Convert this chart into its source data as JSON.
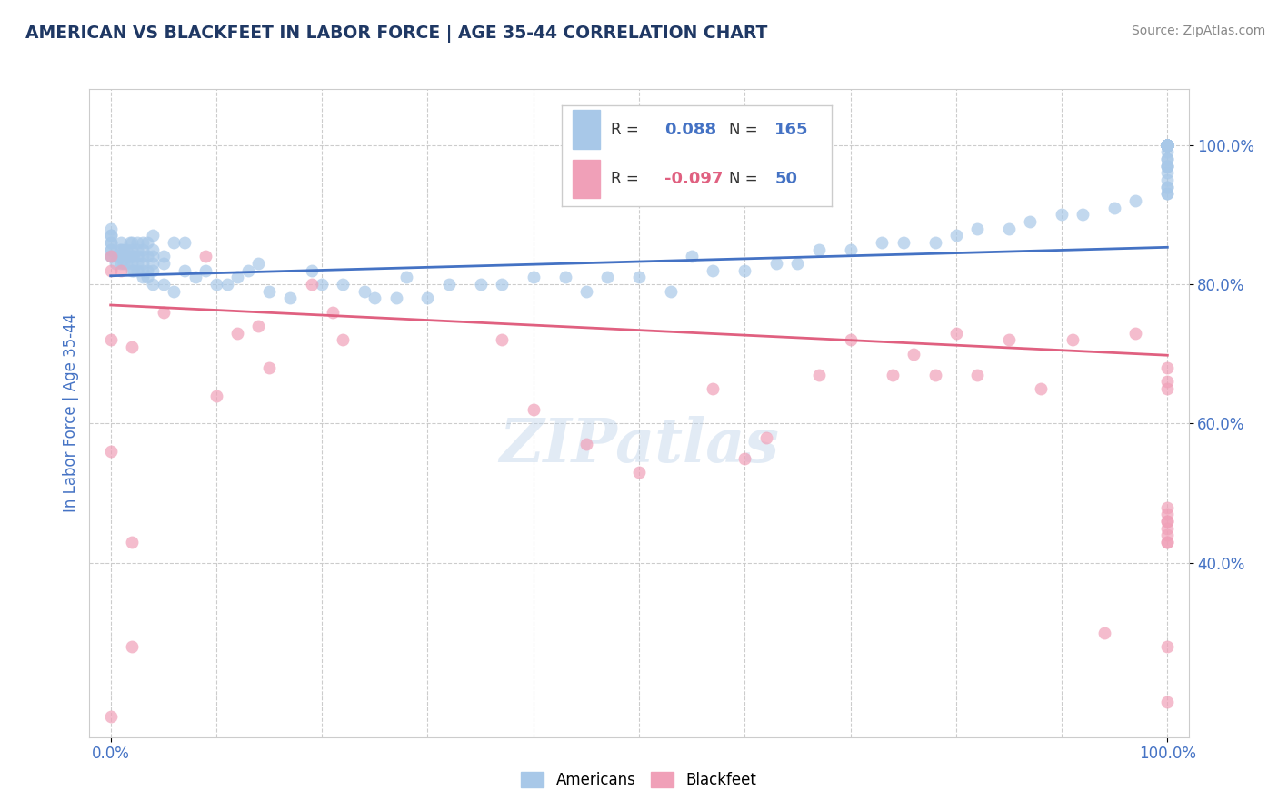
{
  "title": "AMERICAN VS BLACKFEET IN LABOR FORCE | AGE 35-44 CORRELATION CHART",
  "source": "Source: ZipAtlas.com",
  "ylabel": "In Labor Force | Age 35-44",
  "watermark": "ZIPatlas",
  "americans_R": 0.088,
  "americans_N": 165,
  "blackfeet_R": -0.097,
  "blackfeet_N": 50,
  "xlim": [
    -0.02,
    1.02
  ],
  "ylim": [
    0.15,
    1.08
  ],
  "y_ticks": [
    0.4,
    0.6,
    0.8,
    1.0
  ],
  "y_tick_labels": [
    "40.0%",
    "60.0%",
    "80.0%",
    "100.0%"
  ],
  "american_color": "#a8c8e8",
  "blackfeet_color": "#f0a0b8",
  "american_line_color": "#4472C4",
  "blackfeet_line_color": "#E06080",
  "title_color": "#1F3864",
  "tick_color": "#4472C4",
  "background_color": "#ffffff",
  "legend_box_color_american": "#a8c8e8",
  "legend_box_color_blackfeet": "#f0a0b8",
  "americans_x": [
    0.0,
    0.0,
    0.0,
    0.0,
    0.0,
    0.0,
    0.0,
    0.0,
    0.0,
    0.005,
    0.005,
    0.007,
    0.008,
    0.009,
    0.01,
    0.01,
    0.01,
    0.01,
    0.01,
    0.012,
    0.012,
    0.015,
    0.015,
    0.015,
    0.015,
    0.018,
    0.018,
    0.02,
    0.02,
    0.02,
    0.02,
    0.02,
    0.022,
    0.022,
    0.025,
    0.025,
    0.025,
    0.025,
    0.025,
    0.03,
    0.03,
    0.03,
    0.03,
    0.03,
    0.03,
    0.035,
    0.035,
    0.035,
    0.035,
    0.04,
    0.04,
    0.04,
    0.04,
    0.04,
    0.04,
    0.05,
    0.05,
    0.05,
    0.06,
    0.06,
    0.07,
    0.07,
    0.08,
    0.09,
    0.1,
    0.11,
    0.12,
    0.13,
    0.14,
    0.15,
    0.17,
    0.19,
    0.2,
    0.22,
    0.24,
    0.25,
    0.27,
    0.28,
    0.3,
    0.32,
    0.35,
    0.37,
    0.4,
    0.43,
    0.45,
    0.47,
    0.5,
    0.53,
    0.55,
    0.57,
    0.6,
    0.63,
    0.65,
    0.67,
    0.7,
    0.73,
    0.75,
    0.78,
    0.8,
    0.82,
    0.85,
    0.87,
    0.9,
    0.92,
    0.95,
    0.97,
    1.0,
    1.0,
    1.0,
    1.0,
    1.0,
    1.0,
    1.0,
    1.0,
    1.0,
    1.0,
    1.0,
    1.0,
    1.0,
    1.0,
    1.0,
    1.0,
    1.0,
    1.0,
    1.0,
    1.0,
    1.0,
    1.0,
    1.0,
    1.0,
    1.0,
    1.0,
    1.0,
    1.0,
    1.0,
    1.0,
    1.0,
    1.0,
    1.0,
    1.0,
    1.0,
    1.0,
    1.0,
    1.0,
    1.0,
    1.0,
    1.0,
    1.0,
    1.0,
    1.0,
    1.0,
    1.0,
    1.0,
    1.0,
    1.0,
    1.0,
    1.0,
    1.0,
    1.0,
    1.0,
    1.0,
    1.0,
    1.0,
    1.0,
    1.0
  ],
  "americans_y": [
    0.84,
    0.84,
    0.85,
    0.85,
    0.86,
    0.86,
    0.87,
    0.87,
    0.88,
    0.83,
    0.84,
    0.84,
    0.84,
    0.85,
    0.83,
    0.84,
    0.84,
    0.85,
    0.86,
    0.83,
    0.85,
    0.83,
    0.84,
    0.84,
    0.85,
    0.84,
    0.86,
    0.82,
    0.83,
    0.84,
    0.85,
    0.86,
    0.82,
    0.84,
    0.82,
    0.83,
    0.84,
    0.85,
    0.86,
    0.81,
    0.82,
    0.83,
    0.84,
    0.85,
    0.86,
    0.81,
    0.82,
    0.84,
    0.86,
    0.8,
    0.82,
    0.83,
    0.84,
    0.85,
    0.87,
    0.8,
    0.83,
    0.84,
    0.79,
    0.86,
    0.82,
    0.86,
    0.81,
    0.82,
    0.8,
    0.8,
    0.81,
    0.82,
    0.83,
    0.79,
    0.78,
    0.82,
    0.8,
    0.8,
    0.79,
    0.78,
    0.78,
    0.81,
    0.78,
    0.8,
    0.8,
    0.8,
    0.81,
    0.81,
    0.79,
    0.81,
    0.81,
    0.79,
    0.84,
    0.82,
    0.82,
    0.83,
    0.83,
    0.85,
    0.85,
    0.86,
    0.86,
    0.86,
    0.87,
    0.88,
    0.88,
    0.89,
    0.9,
    0.9,
    0.91,
    0.92,
    0.93,
    0.93,
    0.94,
    0.94,
    0.95,
    0.96,
    0.97,
    0.97,
    0.98,
    0.98,
    0.99,
    1.0,
    1.0,
    1.0,
    1.0,
    1.0,
    1.0,
    1.0,
    1.0,
    1.0,
    1.0,
    1.0,
    1.0,
    1.0,
    1.0,
    1.0,
    1.0,
    1.0,
    1.0,
    1.0,
    1.0,
    1.0,
    1.0,
    1.0,
    1.0,
    1.0,
    1.0,
    1.0,
    1.0,
    1.0,
    1.0,
    1.0,
    1.0,
    1.0,
    1.0,
    1.0,
    1.0,
    1.0,
    1.0,
    1.0,
    1.0,
    1.0,
    1.0,
    1.0,
    1.0,
    1.0,
    1.0,
    0.97,
    1.0
  ],
  "blackfeet_x": [
    0.0,
    0.0,
    0.0,
    0.0,
    0.0,
    0.01,
    0.02,
    0.02,
    0.02,
    0.05,
    0.09,
    0.1,
    0.12,
    0.14,
    0.15,
    0.19,
    0.21,
    0.22,
    0.37,
    0.4,
    0.45,
    0.5,
    0.57,
    0.6,
    0.62,
    0.67,
    0.7,
    0.74,
    0.76,
    0.78,
    0.8,
    0.82,
    0.85,
    0.88,
    0.91,
    0.94,
    0.97,
    1.0,
    1.0,
    1.0,
    1.0,
    1.0,
    1.0,
    1.0,
    1.0,
    1.0,
    1.0,
    1.0,
    1.0,
    1.0
  ],
  "blackfeet_y": [
    0.84,
    0.82,
    0.72,
    0.56,
    0.18,
    0.82,
    0.71,
    0.43,
    0.28,
    0.76,
    0.84,
    0.64,
    0.73,
    0.74,
    0.68,
    0.8,
    0.76,
    0.72,
    0.72,
    0.62,
    0.57,
    0.53,
    0.65,
    0.55,
    0.58,
    0.67,
    0.72,
    0.67,
    0.7,
    0.67,
    0.73,
    0.67,
    0.72,
    0.65,
    0.72,
    0.3,
    0.73,
    0.68,
    0.66,
    0.65,
    0.48,
    0.47,
    0.46,
    0.46,
    0.45,
    0.44,
    0.43,
    0.43,
    0.28,
    0.2
  ],
  "american_trend_start": 0.812,
  "american_trend_end": 0.853,
  "blackfeet_trend_start": 0.77,
  "blackfeet_trend_end": 0.698
}
